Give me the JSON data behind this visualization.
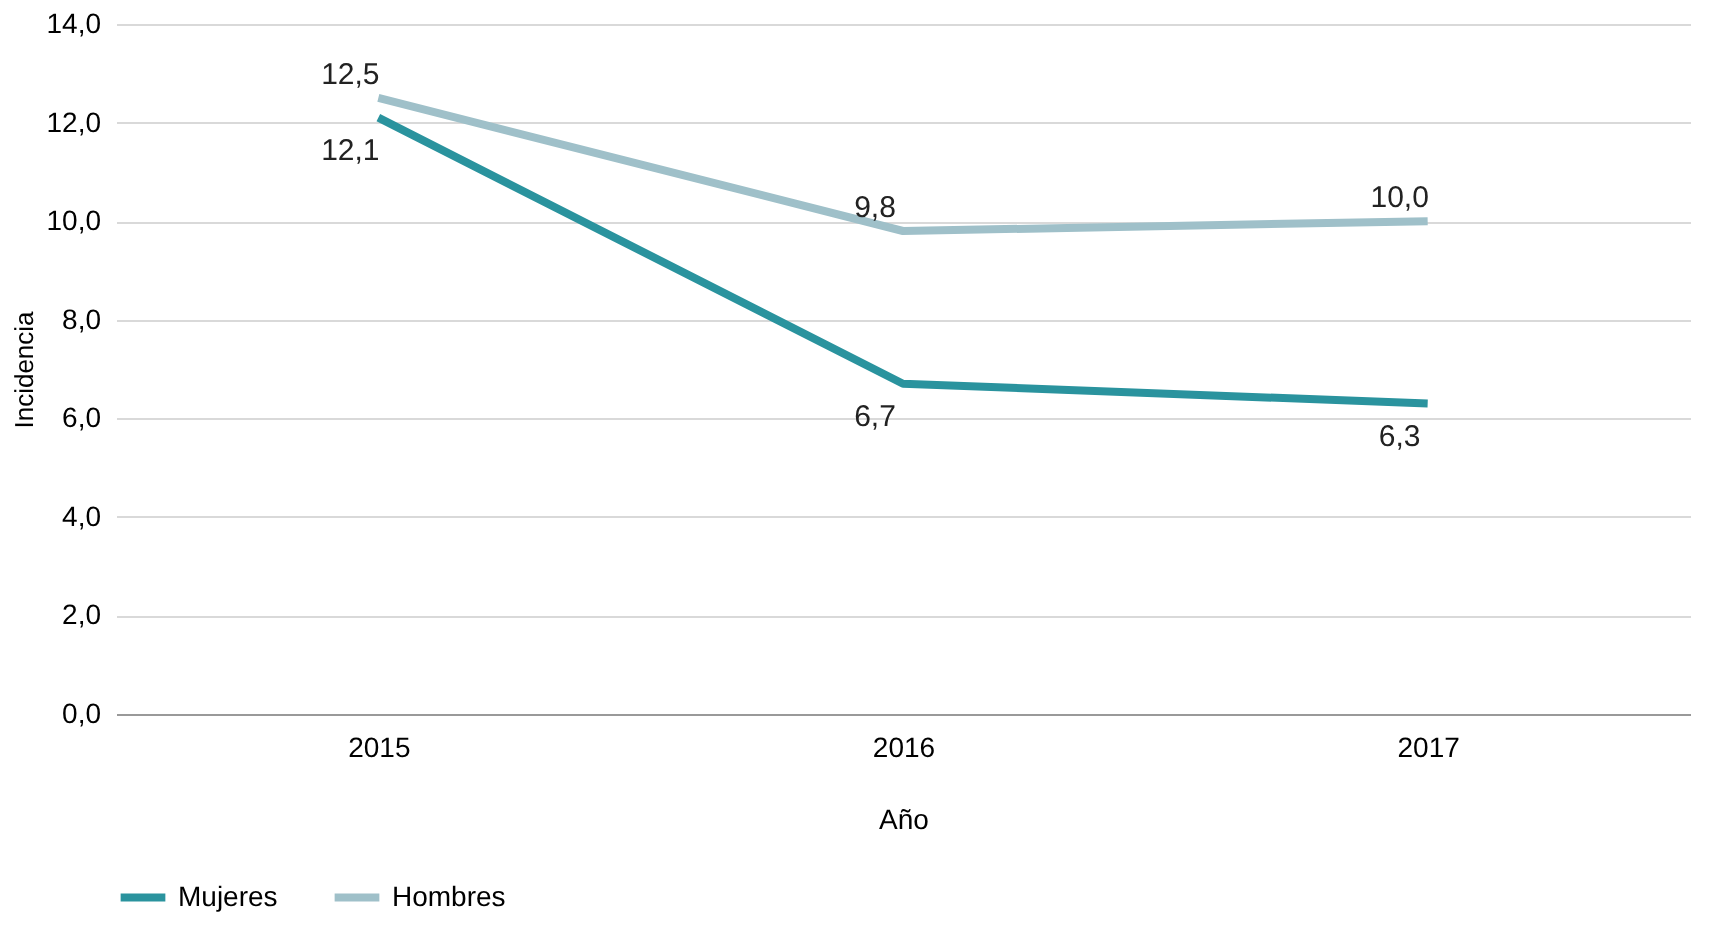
{
  "chart_data": {
    "type": "line",
    "xlabel": "Año",
    "ylabel": "Incidencia",
    "categories": [
      "2015",
      "2016",
      "2017"
    ],
    "series": [
      {
        "name": "Mujeres",
        "color": "#2a939e",
        "values": [
          12.1,
          6.7,
          6.3
        ],
        "value_labels": [
          "12,1",
          "6,7",
          "6,3"
        ]
      },
      {
        "name": "Hombres",
        "color": "#9fc0c9",
        "values": [
          12.5,
          9.8,
          10.0
        ],
        "value_labels": [
          "12,5",
          "9,8",
          "10,0"
        ]
      }
    ],
    "ylim": [
      0,
      14
    ],
    "yticks": [
      {
        "value": 0,
        "label": "0,0"
      },
      {
        "value": 2,
        "label": "2,0"
      },
      {
        "value": 4,
        "label": "4,0"
      },
      {
        "value": 6,
        "label": "6,0"
      },
      {
        "value": 8,
        "label": "8,0"
      },
      {
        "value": 10,
        "label": "10,0"
      },
      {
        "value": 12,
        "label": "12,0"
      },
      {
        "value": 14,
        "label": "14,0"
      }
    ],
    "grid": "y",
    "legend": "bottom",
    "marker": "none",
    "line_style": "solid"
  }
}
